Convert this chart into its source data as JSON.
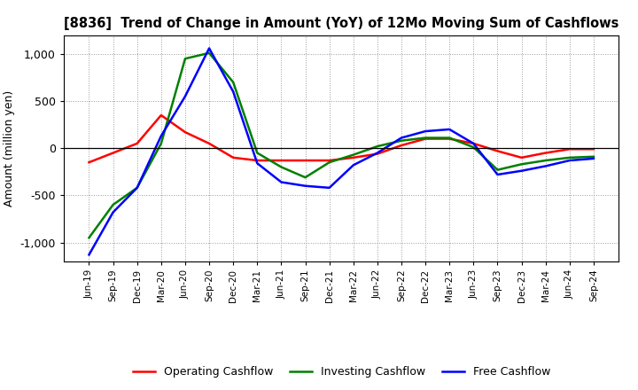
{
  "title": "[8836]  Trend of Change in Amount (YoY) of 12Mo Moving Sum of Cashflows",
  "ylabel": "Amount (million yen)",
  "labels": [
    "Jun-19",
    "Sep-19",
    "Dec-19",
    "Mar-20",
    "Jun-20",
    "Sep-20",
    "Dec-20",
    "Mar-21",
    "Jun-21",
    "Sep-21",
    "Dec-21",
    "Mar-22",
    "Jun-22",
    "Sep-22",
    "Dec-22",
    "Mar-23",
    "Jun-23",
    "Sep-23",
    "Dec-23",
    "Mar-24",
    "Jun-24",
    "Sep-24"
  ],
  "operating": [
    -150,
    -50,
    50,
    350,
    170,
    50,
    -100,
    -130,
    -130,
    -130,
    -130,
    -100,
    -60,
    30,
    100,
    100,
    50,
    -30,
    -100,
    -50,
    -10,
    -10
  ],
  "investing": [
    -950,
    -600,
    -420,
    50,
    950,
    1010,
    700,
    -50,
    -200,
    -310,
    -150,
    -70,
    20,
    80,
    110,
    110,
    10,
    -230,
    -170,
    -130,
    -100,
    -90
  ],
  "free": [
    -1130,
    -680,
    -420,
    130,
    550,
    1060,
    600,
    -160,
    -360,
    -400,
    -420,
    -180,
    -50,
    110,
    180,
    200,
    50,
    -280,
    -240,
    -190,
    -130,
    -110
  ],
  "operating_color": "#ff0000",
  "investing_color": "#008000",
  "free_color": "#0000ff",
  "ylim": [
    -1200,
    1200
  ],
  "yticks": [
    -1000,
    -500,
    0,
    500,
    1000
  ],
  "background_color": "#ffffff",
  "grid_color": "#999999",
  "linewidth": 1.8
}
